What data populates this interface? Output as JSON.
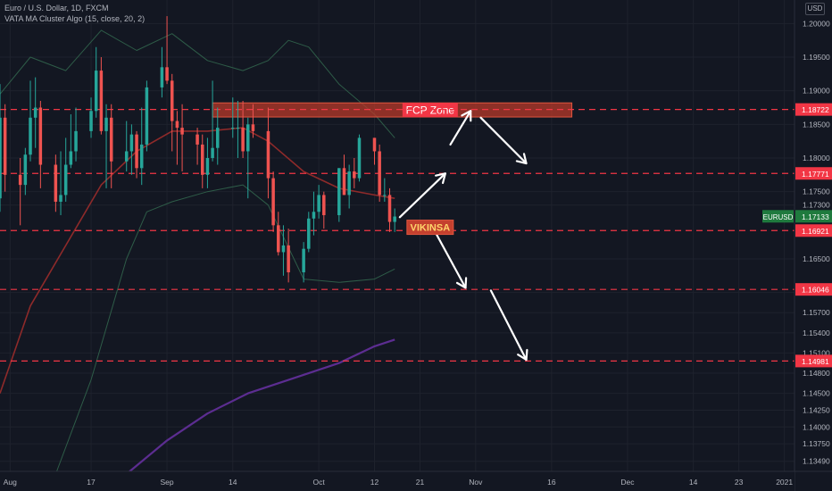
{
  "header": {
    "symbol_line": "Euro / U.S. Dollar, 1D, FXCM",
    "indicator_line": "VATA MA Cluster Algo (15, close, 20, 2)",
    "currency": "USD"
  },
  "colors": {
    "background": "#131722",
    "grid": "#1e222d",
    "axis_text": "#b2b5be",
    "up_candle": "#26a69a",
    "down_candle": "#ef5350",
    "level_line": "#f23645",
    "level_label_bg": "#f23645",
    "last_price_bg": "#1f7a3e",
    "band": "#2e5c48",
    "ma_red": "#8e2a2a",
    "ma_purple": "#5c2d91",
    "arrow": "#ffffff",
    "zone_fill": "#b83a2a",
    "zone_border": "#e0553f"
  },
  "chart_data": {
    "type": "candlestick",
    "title": "Euro / U.S. Dollar, 1D, FXCM",
    "y_axis": {
      "min": 1.1334,
      "max": 1.2035,
      "position": "right",
      "ticks": [
        1.2,
        1.195,
        1.19,
        1.185,
        1.18,
        1.175,
        1.173,
        1.165,
        1.16,
        1.157,
        1.154,
        1.151,
        1.148,
        1.145,
        1.1425,
        1.14,
        1.1375,
        1.1349
      ],
      "tick_labels": [
        "1.20000",
        "1.19500",
        "1.19000",
        "1.18500",
        "1.18000",
        "1.17500",
        "1.17300",
        "1.16500",
        "1.16000",
        "1.15700",
        "1.15400",
        "1.15100",
        "1.14800",
        "1.14500",
        "1.14250",
        "1.14000",
        "1.13750",
        "1.13490"
      ]
    },
    "x_axis": {
      "min": "2020-07-30",
      "max": "2021-01-03",
      "ticks": [
        {
          "date": "2020-08-01",
          "label": "Aug"
        },
        {
          "date": "2020-08-17",
          "label": "17"
        },
        {
          "date": "2020-09-01",
          "label": "Sep"
        },
        {
          "date": "2020-09-14",
          "label": "14"
        },
        {
          "date": "2020-10-01",
          "label": "Oct"
        },
        {
          "date": "2020-10-12",
          "label": "12"
        },
        {
          "date": "2020-10-21",
          "label": "21"
        },
        {
          "date": "2020-11-01",
          "label": "Nov"
        },
        {
          "date": "2020-11-16",
          "label": "16"
        },
        {
          "date": "2020-12-01",
          "label": "Dec"
        },
        {
          "date": "2020-12-14",
          "label": "14"
        },
        {
          "date": "2020-12-23",
          "label": "23"
        },
        {
          "date": "2021-01-01",
          "label": "2021"
        }
      ]
    },
    "candles": [
      {
        "date": "2020-07-30",
        "o": 1.174,
        "h": 1.191,
        "l": 1.172,
        "c": 1.186
      },
      {
        "date": "2020-07-31",
        "o": 1.186,
        "h": 1.188,
        "l": 1.175,
        "c": 1.1775
      },
      {
        "date": "2020-08-03",
        "o": 1.1775,
        "h": 1.18,
        "l": 1.17,
        "c": 1.176
      },
      {
        "date": "2020-08-04",
        "o": 1.176,
        "h": 1.1815,
        "l": 1.1745,
        "c": 1.1805
      },
      {
        "date": "2020-08-05",
        "o": 1.1805,
        "h": 1.1915,
        "l": 1.1795,
        "c": 1.186
      },
      {
        "date": "2020-08-06",
        "o": 1.186,
        "h": 1.192,
        "l": 1.1815,
        "c": 1.1875
      },
      {
        "date": "2020-08-07",
        "o": 1.1875,
        "h": 1.1885,
        "l": 1.1755,
        "c": 1.179
      },
      {
        "date": "2020-08-10",
        "o": 1.179,
        "h": 1.1805,
        "l": 1.172,
        "c": 1.1735
      },
      {
        "date": "2020-08-11",
        "o": 1.1735,
        "h": 1.181,
        "l": 1.1715,
        "c": 1.1745
      },
      {
        "date": "2020-08-12",
        "o": 1.1745,
        "h": 1.183,
        "l": 1.1735,
        "c": 1.179
      },
      {
        "date": "2020-08-13",
        "o": 1.179,
        "h": 1.1865,
        "l": 1.1785,
        "c": 1.181
      },
      {
        "date": "2020-08-14",
        "o": 1.181,
        "h": 1.1875,
        "l": 1.1795,
        "c": 1.184
      },
      {
        "date": "2020-08-17",
        "o": 1.184,
        "h": 1.189,
        "l": 1.183,
        "c": 1.187
      },
      {
        "date": "2020-08-18",
        "o": 1.187,
        "h": 1.1965,
        "l": 1.186,
        "c": 1.193
      },
      {
        "date": "2020-08-19",
        "o": 1.193,
        "h": 1.195,
        "l": 1.1835,
        "c": 1.184
      },
      {
        "date": "2020-08-20",
        "o": 1.184,
        "h": 1.188,
        "l": 1.1755,
        "c": 1.186
      },
      {
        "date": "2020-08-21",
        "o": 1.186,
        "h": 1.188,
        "l": 1.1755,
        "c": 1.1795
      },
      {
        "date": "2020-08-24",
        "o": 1.1795,
        "h": 1.1855,
        "l": 1.178,
        "c": 1.181
      },
      {
        "date": "2020-08-25",
        "o": 1.181,
        "h": 1.185,
        "l": 1.1775,
        "c": 1.1835
      },
      {
        "date": "2020-08-26",
        "o": 1.1835,
        "h": 1.184,
        "l": 1.177,
        "c": 1.1785
      },
      {
        "date": "2020-08-27",
        "o": 1.1785,
        "h": 1.1875,
        "l": 1.176,
        "c": 1.182
      },
      {
        "date": "2020-08-28",
        "o": 1.182,
        "h": 1.1915,
        "l": 1.181,
        "c": 1.1905
      },
      {
        "date": "2020-08-31",
        "o": 1.1905,
        "h": 1.1965,
        "l": 1.189,
        "c": 1.1935
      },
      {
        "date": "2020-09-01",
        "o": 1.1935,
        "h": 1.2011,
        "l": 1.191,
        "c": 1.1915
      },
      {
        "date": "2020-09-02",
        "o": 1.1915,
        "h": 1.1925,
        "l": 1.181,
        "c": 1.1855
      },
      {
        "date": "2020-09-03",
        "o": 1.1855,
        "h": 1.187,
        "l": 1.179,
        "c": 1.1845
      },
      {
        "date": "2020-09-04",
        "o": 1.1845,
        "h": 1.188,
        "l": 1.178,
        "c": 1.1835
      },
      {
        "date": "2020-09-07",
        "o": 1.1835,
        "h": 1.1845,
        "l": 1.179,
        "c": 1.182
      },
      {
        "date": "2020-09-08",
        "o": 1.182,
        "h": 1.1835,
        "l": 1.1755,
        "c": 1.1775
      },
      {
        "date": "2020-09-09",
        "o": 1.1775,
        "h": 1.183,
        "l": 1.1755,
        "c": 1.18
      },
      {
        "date": "2020-09-10",
        "o": 1.18,
        "h": 1.1915,
        "l": 1.1795,
        "c": 1.1815
      },
      {
        "date": "2020-09-11",
        "o": 1.1815,
        "h": 1.1875,
        "l": 1.179,
        "c": 1.1845
      },
      {
        "date": "2020-09-14",
        "o": 1.1845,
        "h": 1.189,
        "l": 1.183,
        "c": 1.1845
      },
      {
        "date": "2020-09-15",
        "o": 1.1845,
        "h": 1.1885,
        "l": 1.18,
        "c": 1.1845
      },
      {
        "date": "2020-09-16",
        "o": 1.1845,
        "h": 1.1885,
        "l": 1.18,
        "c": 1.181
      },
      {
        "date": "2020-09-17",
        "o": 1.181,
        "h": 1.186,
        "l": 1.174,
        "c": 1.185
      },
      {
        "date": "2020-09-18",
        "o": 1.185,
        "h": 1.188,
        "l": 1.183,
        "c": 1.184
      },
      {
        "date": "2020-09-21",
        "o": 1.184,
        "h": 1.1875,
        "l": 1.174,
        "c": 1.177
      },
      {
        "date": "2020-09-22",
        "o": 1.177,
        "h": 1.178,
        "l": 1.169,
        "c": 1.17
      },
      {
        "date": "2020-09-23",
        "o": 1.17,
        "h": 1.172,
        "l": 1.1655,
        "c": 1.166
      },
      {
        "date": "2020-09-24",
        "o": 1.166,
        "h": 1.17,
        "l": 1.1625,
        "c": 1.167
      },
      {
        "date": "2020-09-25",
        "o": 1.167,
        "h": 1.1695,
        "l": 1.1615,
        "c": 1.163
      },
      {
        "date": "2020-09-28",
        "o": 1.163,
        "h": 1.1675,
        "l": 1.1615,
        "c": 1.1665
      },
      {
        "date": "2020-09-29",
        "o": 1.1665,
        "h": 1.172,
        "l": 1.166,
        "c": 1.171
      },
      {
        "date": "2020-09-30",
        "o": 1.171,
        "h": 1.175,
        "l": 1.1685,
        "c": 1.172
      },
      {
        "date": "2020-10-01",
        "o": 1.172,
        "h": 1.176,
        "l": 1.171,
        "c": 1.1745
      },
      {
        "date": "2020-10-02",
        "o": 1.1745,
        "h": 1.175,
        "l": 1.1695,
        "c": 1.1715
      },
      {
        "date": "2020-10-05",
        "o": 1.1715,
        "h": 1.1785,
        "l": 1.1705,
        "c": 1.1785
      },
      {
        "date": "2020-10-06",
        "o": 1.1785,
        "h": 1.1805,
        "l": 1.1745,
        "c": 1.1745
      },
      {
        "date": "2020-10-07",
        "o": 1.1745,
        "h": 1.179,
        "l": 1.1725,
        "c": 1.178
      },
      {
        "date": "2020-10-08",
        "o": 1.178,
        "h": 1.18,
        "l": 1.1755,
        "c": 1.177
      },
      {
        "date": "2020-10-09",
        "o": 1.177,
        "h": 1.1835,
        "l": 1.1765,
        "c": 1.183
      },
      {
        "date": "2020-10-12",
        "o": 1.183,
        "h": 1.183,
        "l": 1.179,
        "c": 1.181
      },
      {
        "date": "2020-10-13",
        "o": 1.181,
        "h": 1.182,
        "l": 1.1735,
        "c": 1.1745
      },
      {
        "date": "2020-10-14",
        "o": 1.1745,
        "h": 1.177,
        "l": 1.1735,
        "c": 1.1745
      },
      {
        "date": "2020-10-15",
        "o": 1.1745,
        "h": 1.1755,
        "l": 1.169,
        "c": 1.1705
      },
      {
        "date": "2020-10-16",
        "o": 1.1705,
        "h": 1.1725,
        "l": 1.169,
        "c": 1.1713
      }
    ],
    "series": [
      {
        "name": "",
        "role": "upper-band",
        "color": "#2e5c48",
        "points": [
          {
            "date": "2020-07-30",
            "y": 1.1895
          },
          {
            "date": "2020-08-05",
            "y": 1.195
          },
          {
            "date": "2020-08-12",
            "y": 1.193
          },
          {
            "date": "2020-08-19",
            "y": 1.199
          },
          {
            "date": "2020-08-26",
            "y": 1.196
          },
          {
            "date": "2020-09-02",
            "y": 1.1985
          },
          {
            "date": "2020-09-09",
            "y": 1.1945
          },
          {
            "date": "2020-09-16",
            "y": 1.193
          },
          {
            "date": "2020-09-21",
            "y": 1.1945
          },
          {
            "date": "2020-09-25",
            "y": 1.1975
          },
          {
            "date": "2020-09-29",
            "y": 1.1965
          },
          {
            "date": "2020-10-05",
            "y": 1.191
          },
          {
            "date": "2020-10-12",
            "y": 1.1865
          },
          {
            "date": "2020-10-16",
            "y": 1.183
          }
        ]
      },
      {
        "name": "",
        "role": "lower-band",
        "color": "#2e5c48",
        "points": [
          {
            "date": "2020-08-10",
            "y": 1.133
          },
          {
            "date": "2020-08-17",
            "y": 1.147
          },
          {
            "date": "2020-08-24",
            "y": 1.165
          },
          {
            "date": "2020-08-28",
            "y": 1.172
          },
          {
            "date": "2020-09-02",
            "y": 1.1735
          },
          {
            "date": "2020-09-09",
            "y": 1.175
          },
          {
            "date": "2020-09-16",
            "y": 1.176
          },
          {
            "date": "2020-09-21",
            "y": 1.173
          },
          {
            "date": "2020-09-28",
            "y": 1.162
          },
          {
            "date": "2020-10-05",
            "y": 1.1615
          },
          {
            "date": "2020-10-12",
            "y": 1.162
          },
          {
            "date": "2020-10-16",
            "y": 1.1635
          }
        ]
      },
      {
        "name": "",
        "role": "mid-ma",
        "color": "#8e2a2a",
        "points": [
          {
            "date": "2020-07-30",
            "y": 1.145
          },
          {
            "date": "2020-08-05",
            "y": 1.158
          },
          {
            "date": "2020-08-12",
            "y": 1.167
          },
          {
            "date": "2020-08-19",
            "y": 1.176
          },
          {
            "date": "2020-08-26",
            "y": 1.181
          },
          {
            "date": "2020-09-02",
            "y": 1.184
          },
          {
            "date": "2020-09-09",
            "y": 1.184
          },
          {
            "date": "2020-09-16",
            "y": 1.1845
          },
          {
            "date": "2020-09-21",
            "y": 1.1825
          },
          {
            "date": "2020-09-28",
            "y": 1.178
          },
          {
            "date": "2020-10-05",
            "y": 1.1755
          },
          {
            "date": "2020-10-12",
            "y": 1.1745
          },
          {
            "date": "2020-10-16",
            "y": 1.174
          }
        ]
      },
      {
        "name": "",
        "role": "slow-ma",
        "color": "#5c2d91",
        "points": [
          {
            "date": "2020-08-24",
            "y": 1.133
          },
          {
            "date": "2020-09-01",
            "y": 1.138
          },
          {
            "date": "2020-09-09",
            "y": 1.142
          },
          {
            "date": "2020-09-17",
            "y": 1.145
          },
          {
            "date": "2020-09-25",
            "y": 1.147
          },
          {
            "date": "2020-10-05",
            "y": 1.1495
          },
          {
            "date": "2020-10-12",
            "y": 1.152
          },
          {
            "date": "2020-10-16",
            "y": 1.153
          }
        ]
      }
    ],
    "levels": [
      {
        "price": 1.18722,
        "label": "1.18722"
      },
      {
        "price": 1.17771,
        "label": "1.17771"
      },
      {
        "price": 1.16921,
        "label": "1.16921"
      },
      {
        "price": 1.16046,
        "label": "1.16046"
      },
      {
        "price": 1.14981,
        "label": "1.14981"
      }
    ],
    "last_price": {
      "price": 1.17133,
      "symbol": "EURUSD",
      "label": "1.17133"
    },
    "zones": [
      {
        "label": "FCP Zone",
        "start": "2020-09-10",
        "end": "2020-11-20",
        "top": 1.1882,
        "bottom": 1.1861
      }
    ],
    "annotations": [
      {
        "text": "VIKINSA",
        "date": "2020-10-23",
        "price": 1.1697
      }
    ],
    "projection_arrows": [
      [
        {
          "date": "2020-10-17",
          "y": 1.1712
        },
        {
          "date": "2020-10-26",
          "y": 1.1777
        }
      ],
      [
        {
          "date": "2020-10-27",
          "y": 1.182
        },
        {
          "date": "2020-10-31",
          "y": 1.187
        }
      ],
      [
        {
          "date": "2020-11-02",
          "y": 1.186
        },
        {
          "date": "2020-11-11",
          "y": 1.1792
        }
      ],
      [
        {
          "date": "2020-10-24",
          "y": 1.169
        },
        {
          "date": "2020-10-30",
          "y": 1.1607
        }
      ],
      [
        {
          "date": "2020-11-04",
          "y": 1.1603
        },
        {
          "date": "2020-11-11",
          "y": 1.15
        }
      ]
    ]
  }
}
